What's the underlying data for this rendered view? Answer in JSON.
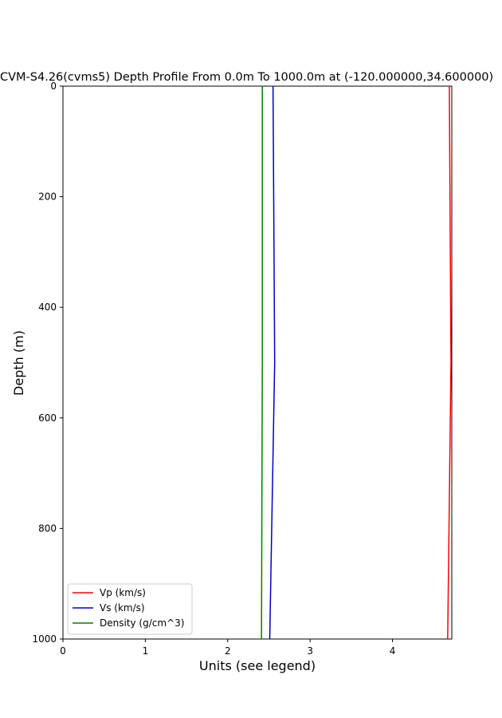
{
  "chart_data": {
    "type": "line",
    "title": "CVM-S4.26(cvms5) Depth Profile From 0.0m To 1000.0m at (-120.000000,34.600000)",
    "xlabel": "Units (see legend)",
    "ylabel": "Depth (m)",
    "xlim": [
      0,
      4.72
    ],
    "ylim": [
      1000,
      0
    ],
    "y_inverted": true,
    "xticks": [
      0,
      1,
      2,
      3,
      4
    ],
    "yticks": [
      0,
      200,
      400,
      600,
      800,
      1000
    ],
    "grid": false,
    "legend_position": "lower-left",
    "series": [
      {
        "name": "Vp (km/s)",
        "color": "#ff0000",
        "points": [
          {
            "x": 4.69,
            "y": 0
          },
          {
            "x": 4.71,
            "y": 500
          },
          {
            "x": 4.69,
            "y": 750
          },
          {
            "x": 4.67,
            "y": 1000
          }
        ]
      },
      {
        "name": "Vs (km/s)",
        "color": "#0000cc",
        "points": [
          {
            "x": 2.55,
            "y": 0
          },
          {
            "x": 2.57,
            "y": 500
          },
          {
            "x": 2.51,
            "y": 1000
          }
        ]
      },
      {
        "name": "Density (g/cm^3)",
        "color": "#008000",
        "points": [
          {
            "x": 2.42,
            "y": 0
          },
          {
            "x": 2.42,
            "y": 500
          },
          {
            "x": 2.41,
            "y": 1000
          }
        ]
      }
    ]
  }
}
